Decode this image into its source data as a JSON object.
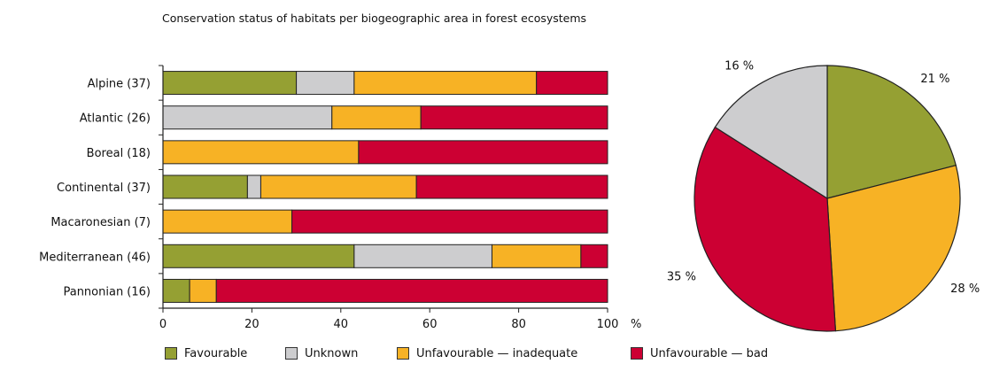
{
  "title": "Conservation status of habitats per biogeographic area in forest ecosystems",
  "colors": {
    "favourable": "#95a033",
    "unknown": "#cdcdcf",
    "inadequate": "#f7b225",
    "bad": "#cc0033"
  },
  "chart_data": [
    {
      "type": "bar",
      "orientation": "horizontal",
      "stacked": true,
      "categories": [
        "Alpine (37)",
        "Atlantic (26)",
        "Boreal (18)",
        "Continental (37)",
        "Macaronesian (7)",
        "Mediterranean (46)",
        "Pannonian (16)"
      ],
      "series": [
        {
          "name": "Favourable",
          "values": [
            30,
            0,
            0,
            19,
            0,
            43,
            6
          ]
        },
        {
          "name": "Unknown",
          "values": [
            13,
            38,
            0,
            3,
            0,
            31,
            0
          ]
        },
        {
          "name": "Unfavourable — inadequate",
          "values": [
            41,
            20,
            44,
            35,
            29,
            20,
            6
          ]
        },
        {
          "name": "Unfavourable — bad",
          "values": [
            16,
            42,
            56,
            43,
            71,
            6,
            88
          ]
        }
      ],
      "xlim": [
        0,
        100
      ],
      "xticks": [
        "0",
        "20",
        "40",
        "60",
        "80",
        "100"
      ],
      "unit": "%"
    },
    {
      "type": "pie",
      "slices": [
        {
          "name": "Favourable",
          "value": 21,
          "label": "21 %"
        },
        {
          "name": "Unfavourable — inadequate",
          "value": 28,
          "label": "28 %"
        },
        {
          "name": "Unfavourable — bad",
          "value": 35,
          "label": "35 %"
        },
        {
          "name": "Unknown",
          "value": 16,
          "label": "16 %"
        }
      ]
    }
  ],
  "legend": [
    {
      "label": "Favourable",
      "color_key": "favourable"
    },
    {
      "label": "Unknown",
      "color_key": "unknown"
    },
    {
      "label": "Unfavourable — inadequate",
      "color_key": "inadequate"
    },
    {
      "label": "Unfavourable — bad",
      "color_key": "bad"
    }
  ]
}
